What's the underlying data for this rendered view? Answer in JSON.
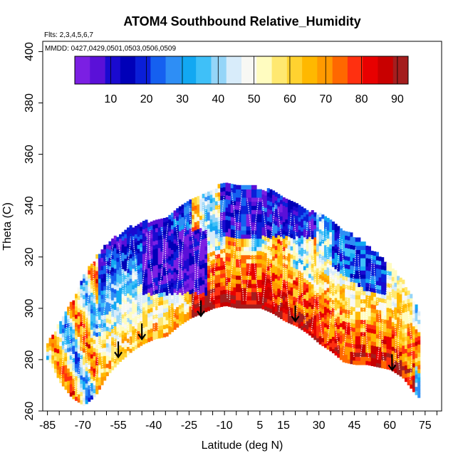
{
  "chart_data": {
    "type": "heatmap",
    "title": "ATOM4 Southbound Relative_Humidity",
    "subtitle_flights": "Flts: 2,3,4,5,6,7",
    "subtitle_dates": "MMDD: 0427,0429,0501,0503,0506,0509",
    "xlabel": "Latitude (deg N)",
    "ylabel": "Theta (C)",
    "xlim": [
      -87,
      82
    ],
    "ylim": [
      260,
      404
    ],
    "x_ticks": [
      -85,
      -70,
      -55,
      -40,
      -25,
      -10,
      5,
      15,
      30,
      45,
      60,
      75
    ],
    "x_tick_labels": [
      "-85",
      "-70",
      "-55",
      "-40",
      "-25",
      "-10",
      "5",
      "15",
      "30",
      "45",
      "60",
      "75"
    ],
    "y_ticks": [
      260,
      280,
      300,
      320,
      340,
      360,
      380,
      400
    ],
    "y_tick_labels": [
      "260",
      "280",
      "300",
      "320",
      "340",
      "360",
      "380",
      "400"
    ],
    "colorbar": {
      "range": [
        0,
        93
      ],
      "ticks": [
        10,
        20,
        30,
        40,
        50,
        60,
        70,
        80,
        90
      ],
      "tick_labels": [
        "10",
        "20",
        "30",
        "40",
        "50",
        "60",
        "70",
        "80",
        "90"
      ],
      "colors": [
        "#7b1fe3",
        "#5a10d8",
        "#1a0ad0",
        "#0000b8",
        "#0a1ed8",
        "#1560f0",
        "#2e8ef5",
        "#12a8f2",
        "#3fc0f8",
        "#95d5f8",
        "#d8ecfa",
        "#f8f8f4",
        "#fffcc0",
        "#ffe870",
        "#ffd230",
        "#ffb800",
        "#ff9a00",
        "#ff6800",
        "#ff3010",
        "#e80000",
        "#c80000",
        "#a41e1e"
      ]
    },
    "envelope": {
      "latitude": [
        -85,
        -80,
        -75,
        -70,
        -65,
        -60,
        -55,
        -50,
        -45,
        -40,
        -35,
        -30,
        -25,
        -20,
        -15,
        -10,
        -5,
        0,
        5,
        10,
        15,
        20,
        25,
        30,
        35,
        40,
        45,
        50,
        55,
        60,
        65,
        70,
        72
      ],
      "theta_top": [
        286,
        294,
        302,
        312,
        319,
        325,
        328,
        331,
        333,
        333,
        335,
        338,
        341,
        344,
        346,
        348,
        348,
        347,
        346,
        345,
        342,
        340,
        337,
        336,
        334,
        330,
        327,
        324,
        320,
        316,
        310,
        302,
        298
      ],
      "theta_bottom": [
        280,
        271,
        265,
        262,
        266,
        274,
        279,
        283,
        286,
        288,
        289,
        293,
        296,
        298,
        300,
        301,
        300,
        300,
        300,
        298,
        295,
        293,
        290,
        286,
        283,
        279,
        278,
        278,
        277,
        276,
        273,
        267,
        265
      ]
    },
    "tropopause_arrows": [
      {
        "latitude": -55,
        "theta": 281
      },
      {
        "latitude": -45,
        "theta": 288
      },
      {
        "latitude": -20,
        "theta": 297
      },
      {
        "latitude": 20,
        "theta": 295
      },
      {
        "latitude": 61,
        "theta": 276
      }
    ]
  }
}
